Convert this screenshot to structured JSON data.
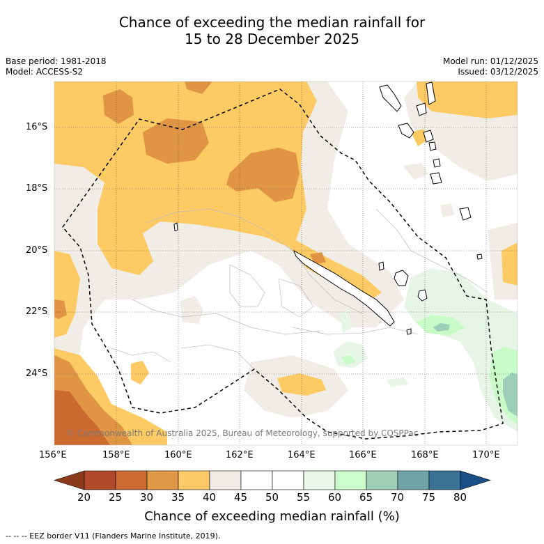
{
  "title": {
    "line1": "Chance of exceeding the median rainfall for",
    "line2": "15 to 28 December 2025"
  },
  "meta": {
    "base_period": "Base period: 1981-2018",
    "model": "Model: ACCESS-S2",
    "model_run": "Model run: 01/12/2025",
    "issued": "Issued: 03/12/2025"
  },
  "map": {
    "lat_labels": [
      "16°S",
      "18°S",
      "20°S",
      "22°S",
      "24°S"
    ],
    "lon_labels": [
      "156°E",
      "158°E",
      "160°E",
      "162°E",
      "164°E",
      "166°E",
      "168°E",
      "170°E"
    ],
    "copyright": "© Commonwealth of Australia 2025, Bureau of Meteorology, supported by COSPPac",
    "colors": {
      "c40_45": "#f0ece6",
      "c35_40": "#fdca64",
      "c30_35": "#e09544",
      "c25_30": "#cc6b30",
      "c55_60": "#e7f5e7",
      "c60_65": "#c9fbc9",
      "c65_70": "#9dcfb8",
      "c70_75": "#6e9faa"
    }
  },
  "colorbar": {
    "ticks": [
      "20",
      "25",
      "30",
      "35",
      "40",
      "45",
      "50",
      "55",
      "60",
      "65",
      "70",
      "75",
      "80"
    ],
    "colors": [
      "#8c3a1e",
      "#b0482a",
      "#cd6b33",
      "#e09746",
      "#fdca67",
      "#f1ede6",
      "#ffffff",
      "#ffffff",
      "#e9f6e9",
      "#ccfccc",
      "#9ecfb6",
      "#6fa4a7",
      "#3b7397",
      "#1a4f86"
    ],
    "title": "Chance of exceeding median rainfall (%)"
  },
  "footer": "-- -- -- EEZ border V11 (Flanders Marine Institute, 2019)."
}
